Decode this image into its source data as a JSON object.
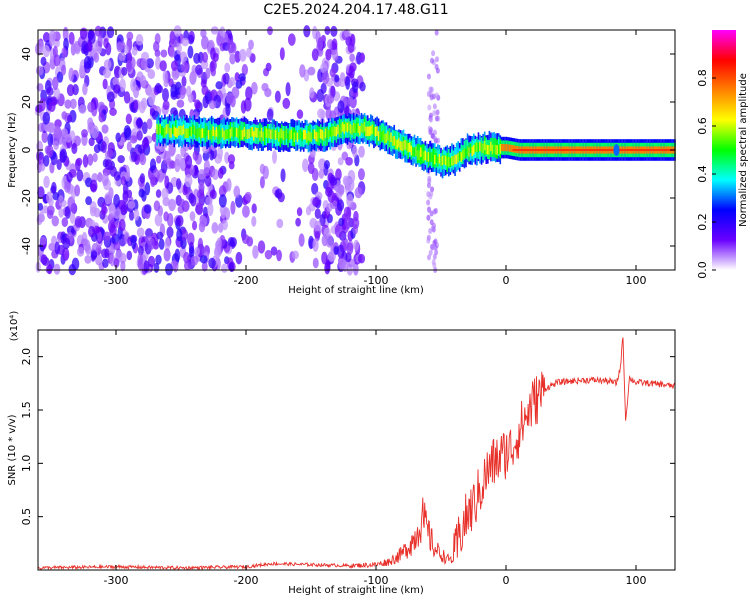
{
  "title": "C2E5.2024.204.17.48.G11",
  "chart_data": [
    {
      "type": "heatmap",
      "xlabel": "Height of straight line (km)",
      "ylabel": "Frequency (Hz)",
      "xlim": [
        -360,
        130
      ],
      "ylim": [
        -50,
        50
      ],
      "xticks": [
        -300,
        -200,
        -100,
        0,
        100
      ],
      "yticks": [
        -40,
        -20,
        0,
        20,
        40
      ],
      "colorbar": {
        "label": "Normalized spectral amplitude",
        "range": [
          0,
          1
        ],
        "ticks": [
          0.0,
          0.2,
          0.4,
          0.6,
          0.8
        ],
        "colors": [
          "#ffffff",
          "#6a00ff",
          "#0000ff",
          "#00ffff",
          "#00ff00",
          "#ffff00",
          "#ff8000",
          "#ff0000",
          "#ff00ff"
        ]
      },
      "noise_region_x": [
        -360,
        -110
      ],
      "peak_track": [
        {
          "x": -270,
          "y": 8
        },
        {
          "x": -250,
          "y": 8
        },
        {
          "x": -220,
          "y": 7
        },
        {
          "x": -200,
          "y": 7
        },
        {
          "x": -180,
          "y": 6
        },
        {
          "x": -160,
          "y": 6
        },
        {
          "x": -140,
          "y": 6
        },
        {
          "x": -125,
          "y": 9
        },
        {
          "x": -110,
          "y": 9
        },
        {
          "x": -95,
          "y": 6
        },
        {
          "x": -80,
          "y": 2
        },
        {
          "x": -65,
          "y": -2
        },
        {
          "x": -50,
          "y": -5
        },
        {
          "x": -40,
          "y": -4
        },
        {
          "x": -30,
          "y": 0
        },
        {
          "x": -15,
          "y": 1
        },
        {
          "x": 0,
          "y": 1
        },
        {
          "x": 10,
          "y": 0
        },
        {
          "x": 85,
          "y": 0
        },
        {
          "x": 130,
          "y": 0
        }
      ]
    },
    {
      "type": "line",
      "xlabel": "Height of straight line (km)",
      "ylabel": "SNR (10 * v/v)",
      "scale_label": "(x10⁴)",
      "xlim": [
        -360,
        130
      ],
      "ylim": [
        0,
        2.25
      ],
      "xticks": [
        -300,
        -200,
        -100,
        0,
        100
      ],
      "yticks": [
        0.5,
        1.0,
        1.5,
        2.0
      ],
      "ytick_labels": [
        "0.5",
        "1.0",
        "1.5",
        "2.0"
      ],
      "series": [
        {
          "color": "#e8302a",
          "x": [
            -360,
            -300,
            -250,
            -200,
            -180,
            -150,
            -120,
            -100,
            -90,
            -80,
            -70,
            -65,
            -60,
            -55,
            -50,
            -45,
            -40,
            -35,
            -30,
            -25,
            -20,
            -15,
            -10,
            -5,
            0,
            5,
            10,
            20,
            30,
            40,
            50,
            60,
            70,
            80,
            85,
            88,
            90,
            92,
            95,
            100,
            110,
            120,
            130
          ],
          "y": [
            0.02,
            0.03,
            0.02,
            0.03,
            0.06,
            0.05,
            0.04,
            0.05,
            0.08,
            0.15,
            0.3,
            0.5,
            0.35,
            0.2,
            0.15,
            0.1,
            0.1,
            0.35,
            0.5,
            0.6,
            0.75,
            0.9,
            1.0,
            1.05,
            1.1,
            1.15,
            1.3,
            1.55,
            1.7,
            1.76,
            1.77,
            1.78,
            1.78,
            1.77,
            1.75,
            1.9,
            2.2,
            1.4,
            1.8,
            1.76,
            1.75,
            1.74,
            1.72
          ]
        }
      ]
    }
  ]
}
